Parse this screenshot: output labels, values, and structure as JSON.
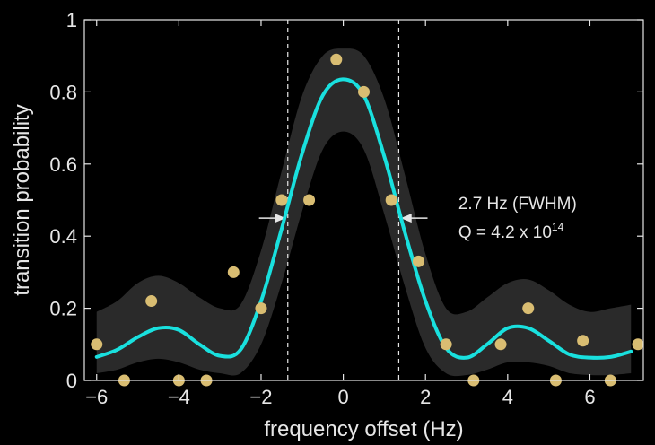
{
  "chart_data": {
    "type": "scatter",
    "xlabel": "frequency offset (Hz)",
    "ylabel": "transition probability",
    "xlim": [
      -6.3,
      7.3
    ],
    "ylim": [
      0,
      1
    ],
    "x_ticks": [
      -6,
      -4,
      -2,
      0,
      2,
      4,
      6
    ],
    "x_tick_labels": [
      "−6",
      "−4",
      "−2",
      "0",
      "2",
      "4",
      "6"
    ],
    "y_ticks": [
      0,
      0.2,
      0.4,
      0.6,
      0.8,
      1
    ],
    "y_tick_labels": [
      "0",
      "0.2",
      "0.4",
      "0.6",
      "0.8",
      "1"
    ],
    "grid": false,
    "colors": {
      "background": "#000000",
      "axes": "#e6e6e6",
      "points": "#d9bd72",
      "fit_line": "#19e0de",
      "confidence_band": "#2a2a2a",
      "marker_lines": "#e6e6e6"
    },
    "points": [
      {
        "x": -6.0,
        "y": 0.1
      },
      {
        "x": -5.33,
        "y": 0.0
      },
      {
        "x": -4.67,
        "y": 0.22
      },
      {
        "x": -4.0,
        "y": 0.0
      },
      {
        "x": -3.33,
        "y": 0.0
      },
      {
        "x": -2.67,
        "y": 0.3
      },
      {
        "x": -2.0,
        "y": 0.2
      },
      {
        "x": -1.5,
        "y": 0.5
      },
      {
        "x": -0.83,
        "y": 0.5
      },
      {
        "x": -0.17,
        "y": 0.89
      },
      {
        "x": 0.5,
        "y": 0.8
      },
      {
        "x": 1.17,
        "y": 0.5
      },
      {
        "x": 1.83,
        "y": 0.33
      },
      {
        "x": 2.5,
        "y": 0.1
      },
      {
        "x": 3.17,
        "y": 0.0
      },
      {
        "x": 3.83,
        "y": 0.1
      },
      {
        "x": 4.5,
        "y": 0.2
      },
      {
        "x": 5.17,
        "y": 0.0
      },
      {
        "x": 5.83,
        "y": 0.11
      },
      {
        "x": 6.5,
        "y": 0.0
      },
      {
        "x": 7.17,
        "y": 0.1
      }
    ],
    "fit": {
      "x": [
        -6.0,
        -5.5,
        -5.0,
        -4.5,
        -4.0,
        -3.5,
        -3.0,
        -2.5,
        -2.0,
        -1.5,
        -1.0,
        -0.5,
        0.0,
        0.5,
        1.0,
        1.5,
        2.0,
        2.5,
        3.0,
        3.5,
        4.0,
        4.5,
        5.0,
        5.5,
        6.0,
        6.5,
        7.0
      ],
      "y": [
        0.065,
        0.085,
        0.12,
        0.145,
        0.14,
        0.1,
        0.068,
        0.085,
        0.22,
        0.42,
        0.63,
        0.79,
        0.835,
        0.79,
        0.62,
        0.41,
        0.22,
        0.09,
        0.063,
        0.1,
        0.145,
        0.145,
        0.11,
        0.072,
        0.063,
        0.065,
        0.08
      ],
      "y_upper": [
        0.19,
        0.22,
        0.27,
        0.29,
        0.27,
        0.23,
        0.2,
        0.21,
        0.36,
        0.58,
        0.79,
        0.9,
        0.92,
        0.9,
        0.78,
        0.57,
        0.35,
        0.2,
        0.19,
        0.23,
        0.27,
        0.28,
        0.25,
        0.21,
        0.19,
        0.2,
        0.21
      ],
      "y_lower": [
        0.02,
        0.03,
        0.05,
        0.06,
        0.05,
        0.03,
        0.02,
        0.02,
        0.1,
        0.27,
        0.47,
        0.64,
        0.69,
        0.64,
        0.46,
        0.26,
        0.09,
        0.02,
        0.015,
        0.03,
        0.05,
        0.05,
        0.04,
        0.02,
        0.015,
        0.015,
        0.02
      ]
    },
    "fwhm_lines": [
      -1.35,
      1.35
    ],
    "arrows": [
      {
        "x_from": -2.05,
        "x_to": -1.4,
        "y": 0.45
      },
      {
        "x_from": 2.05,
        "x_to": 1.4,
        "y": 0.45
      }
    ],
    "annotation": {
      "line1": "2.7 Hz (FWHM)",
      "line2_base": "Q = 4.2 x 10",
      "line2_sup": "14",
      "x": 2.8,
      "y_line1": 0.475,
      "y_line2": 0.395
    }
  }
}
